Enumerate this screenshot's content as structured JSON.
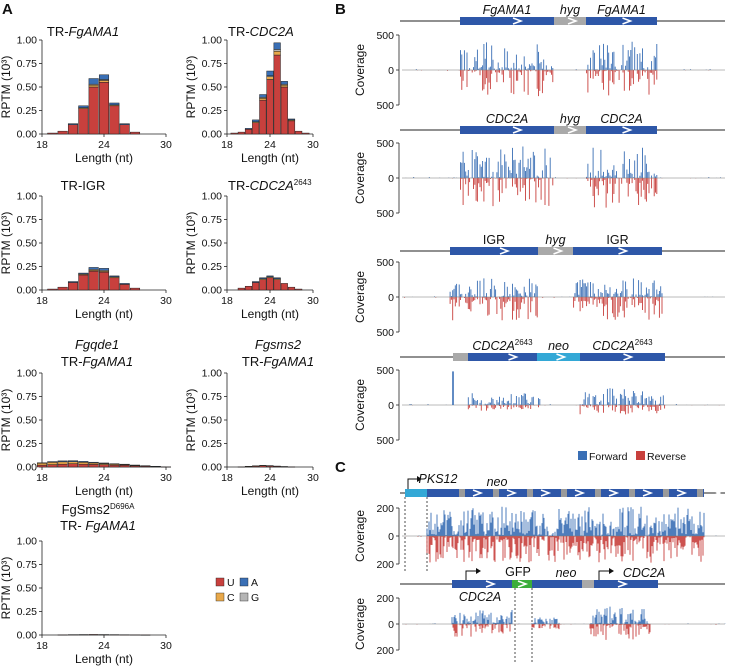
{
  "panels": {
    "A": "A",
    "B": "B",
    "C": "C"
  },
  "panelA": {
    "y_axis_label": "RPTM (10³)",
    "x_axis_label": "Length (nt)",
    "x_ticks": [
      "18",
      "24",
      "30"
    ],
    "y_ticks": [
      "0.00",
      "0.25",
      "0.50",
      "0.75",
      "1.00"
    ],
    "legend": [
      {
        "key": "U",
        "color": "#c8403d"
      },
      {
        "key": "A",
        "color": "#3a6fb5"
      },
      {
        "key": "C",
        "color": "#e8a84a"
      },
      {
        "key": "G",
        "color": "#b5b5b5"
      }
    ],
    "subplots": [
      {
        "title_prefix": "TR-",
        "title_main": "FgAMA1"
      },
      {
        "title_prefix": "TR-",
        "title_main": "CDC2A"
      },
      {
        "title_prefix": "TR-IGR",
        "title_main": ""
      },
      {
        "title_prefix": "TR-",
        "title_main": "CDC2A",
        "title_sup": "2643"
      },
      {
        "title_line1": "Fgqde1",
        "title_prefix": "TR-",
        "title_main": "FgAMA1"
      },
      {
        "title_line1": "Fgsms2",
        "title_prefix": "TR-",
        "title_main": "FgAMA1"
      },
      {
        "title_line1_main": "FgSms2",
        "title_line1_sup": "D696A",
        "title_prefix": "TR- ",
        "title_main": "FgAMA1"
      }
    ]
  },
  "panelB": {
    "y_axis_label": "Coverage",
    "y_ticks": [
      "500",
      "0",
      "500"
    ],
    "legend": [
      {
        "label": "Forward",
        "color": "#3a6fb5"
      },
      {
        "label": "Reverse",
        "color": "#c8403d"
      }
    ],
    "tracks": [
      {
        "left_gene": "FgAMA1",
        "marker": "hyg",
        "right_gene": "FgAMA1"
      },
      {
        "left_gene": "CDC2A",
        "marker": "hyg",
        "right_gene": "CDC2A"
      },
      {
        "left_gene": "IGR",
        "marker": "hyg",
        "right_gene": "IGR"
      },
      {
        "left_gene": "CDC2A",
        "left_sup": "2643",
        "marker": "neo",
        "right_gene": "CDC2A",
        "right_sup": "2643"
      }
    ]
  },
  "panelC": {
    "y_axis_label": "Coverage",
    "y_ticks": [
      "200",
      "0",
      "200"
    ],
    "tracks": [
      {
        "gene1": "PKS12",
        "marker": "neo"
      },
      {
        "gene1": "CDC2A",
        "gfp": "GFP",
        "marker": "neo",
        "gene2": "CDC2A"
      }
    ]
  },
  "chart_data": [
    {
      "type": "bar",
      "id": "A1",
      "title": "TR-FgAMA1",
      "xlabel": "Length (nt)",
      "ylabel": "RPTM (10³)",
      "xlim": [
        18,
        30
      ],
      "ylim": [
        0,
        1
      ],
      "categories": [
        18,
        19,
        20,
        21,
        22,
        23,
        24,
        25,
        26,
        27,
        28,
        29,
        30
      ],
      "series": [
        {
          "name": "U",
          "values": [
            0,
            0.01,
            0.03,
            0.1,
            0.27,
            0.5,
            0.55,
            0.3,
            0.1,
            0.02,
            0,
            0,
            0
          ]
        },
        {
          "name": "C",
          "values": [
            0,
            0,
            0,
            0,
            0.01,
            0.02,
            0.02,
            0.01,
            0,
            0,
            0,
            0,
            0
          ]
        },
        {
          "name": "G",
          "values": [
            0,
            0,
            0,
            0,
            0,
            0.01,
            0.01,
            0,
            0,
            0,
            0,
            0,
            0
          ]
        },
        {
          "name": "A",
          "values": [
            0,
            0,
            0,
            0.01,
            0.02,
            0.06,
            0.05,
            0.02,
            0.01,
            0,
            0,
            0,
            0
          ]
        }
      ]
    },
    {
      "type": "bar",
      "id": "A2",
      "title": "TR-CDC2A",
      "xlabel": "Length (nt)",
      "ylabel": "RPTM (10³)",
      "xlim": [
        18,
        30
      ],
      "ylim": [
        0,
        1
      ],
      "categories": [
        18,
        19,
        20,
        21,
        22,
        23,
        24,
        25,
        26,
        27,
        28,
        29,
        30
      ],
      "series": [
        {
          "name": "U",
          "values": [
            0,
            0.01,
            0.02,
            0.05,
            0.12,
            0.36,
            0.58,
            0.84,
            0.5,
            0.14,
            0.03,
            0.01,
            0
          ]
        },
        {
          "name": "C",
          "values": [
            0,
            0,
            0,
            0,
            0.01,
            0.02,
            0.03,
            0.04,
            0.02,
            0.01,
            0,
            0,
            0
          ]
        },
        {
          "name": "G",
          "values": [
            0,
            0,
            0,
            0,
            0,
            0.01,
            0.01,
            0.02,
            0.01,
            0,
            0,
            0,
            0
          ]
        },
        {
          "name": "A",
          "values": [
            0,
            0,
            0,
            0.01,
            0.02,
            0.03,
            0.05,
            0.07,
            0.03,
            0.01,
            0,
            0,
            0
          ]
        }
      ]
    },
    {
      "type": "bar",
      "id": "A3",
      "title": "TR-IGR",
      "xlabel": "Length (nt)",
      "ylabel": "RPTM (10³)",
      "xlim": [
        18,
        30
      ],
      "ylim": [
        0,
        1
      ],
      "categories": [
        18,
        19,
        20,
        21,
        22,
        23,
        24,
        25,
        26,
        27,
        28,
        29,
        30
      ],
      "series": [
        {
          "name": "U",
          "values": [
            0,
            0.01,
            0.03,
            0.08,
            0.16,
            0.2,
            0.19,
            0.13,
            0.06,
            0.02,
            0,
            0,
            0
          ]
        },
        {
          "name": "C",
          "values": [
            0,
            0,
            0,
            0,
            0.01,
            0.01,
            0.01,
            0.01,
            0,
            0,
            0,
            0,
            0
          ]
        },
        {
          "name": "G",
          "values": [
            0,
            0,
            0,
            0,
            0,
            0.01,
            0.01,
            0,
            0,
            0,
            0,
            0,
            0
          ]
        },
        {
          "name": "A",
          "values": [
            0,
            0,
            0,
            0.01,
            0.01,
            0.02,
            0.02,
            0.01,
            0.01,
            0,
            0,
            0,
            0
          ]
        }
      ]
    },
    {
      "type": "bar",
      "id": "A4",
      "title": "TR-CDC2A2643",
      "xlabel": "Length (nt)",
      "ylabel": "RPTM (10³)",
      "xlim": [
        18,
        30
      ],
      "ylim": [
        0,
        1
      ],
      "categories": [
        18,
        19,
        20,
        21,
        22,
        23,
        24,
        25,
        26,
        27,
        28,
        29,
        30
      ],
      "series": [
        {
          "name": "U",
          "values": [
            0,
            0,
            0.02,
            0.04,
            0.08,
            0.11,
            0.13,
            0.11,
            0.07,
            0.03,
            0.01,
            0,
            0
          ]
        },
        {
          "name": "C",
          "values": [
            0,
            0,
            0,
            0,
            0,
            0.01,
            0.01,
            0.01,
            0,
            0,
            0,
            0,
            0
          ]
        },
        {
          "name": "G",
          "values": [
            0,
            0,
            0,
            0,
            0,
            0,
            0,
            0,
            0,
            0,
            0,
            0,
            0
          ]
        },
        {
          "name": "A",
          "values": [
            0,
            0,
            0,
            0,
            0.01,
            0.01,
            0.01,
            0.01,
            0,
            0,
            0,
            0,
            0
          ]
        }
      ]
    },
    {
      "type": "bar",
      "id": "A5",
      "title": "Fgqde1 TR-FgAMA1",
      "xlabel": "Length (nt)",
      "ylabel": "RPTM (10³)",
      "xlim": [
        18,
        30
      ],
      "ylim": [
        0,
        1
      ],
      "categories": [
        18,
        19,
        20,
        21,
        22,
        23,
        24,
        25,
        26,
        27,
        28,
        29,
        30
      ],
      "series": [
        {
          "name": "U",
          "values": [
            0.02,
            0.025,
            0.03,
            0.035,
            0.03,
            0.028,
            0.025,
            0.02,
            0.018,
            0.012,
            0.008,
            0.005,
            0.002
          ]
        },
        {
          "name": "C",
          "values": [
            0.02,
            0.025,
            0.025,
            0.022,
            0.02,
            0.015,
            0.012,
            0.01,
            0.008,
            0.006,
            0.004,
            0.002,
            0
          ]
        },
        {
          "name": "G",
          "values": [
            0,
            0,
            0,
            0,
            0,
            0,
            0,
            0,
            0,
            0,
            0,
            0,
            0
          ]
        },
        {
          "name": "A",
          "values": [
            0.005,
            0.008,
            0.01,
            0.01,
            0.01,
            0.008,
            0.006,
            0.005,
            0.004,
            0.003,
            0.002,
            0.001,
            0
          ]
        }
      ]
    },
    {
      "type": "bar",
      "id": "A6",
      "title": "Fgsms2 TR-FgAMA1",
      "xlabel": "Length (nt)",
      "ylabel": "RPTM (10³)",
      "xlim": [
        18,
        30
      ],
      "ylim": [
        0,
        1
      ],
      "categories": [
        18,
        19,
        20,
        21,
        22,
        23,
        24,
        25,
        26,
        27,
        28,
        29,
        30
      ],
      "series": [
        {
          "name": "U",
          "values": [
            0,
            0,
            0.002,
            0.006,
            0.01,
            0.014,
            0.012,
            0.008,
            0.004,
            0.002,
            0,
            0,
            0
          ]
        },
        {
          "name": "C",
          "values": [
            0,
            0,
            0,
            0.002,
            0.003,
            0.004,
            0.003,
            0.002,
            0.001,
            0,
            0,
            0,
            0
          ]
        },
        {
          "name": "G",
          "values": [
            0,
            0,
            0,
            0,
            0,
            0,
            0,
            0,
            0,
            0,
            0,
            0,
            0
          ]
        },
        {
          "name": "A",
          "values": [
            0,
            0,
            0,
            0,
            0,
            0,
            0,
            0,
            0,
            0,
            0,
            0,
            0
          ]
        }
      ]
    },
    {
      "type": "bar",
      "id": "A7",
      "title": "FgSms2D696A TR- FgAMA1",
      "xlabel": "Length (nt)",
      "ylabel": "RPTM (10³)",
      "xlim": [
        18,
        30
      ],
      "ylim": [
        0,
        1
      ],
      "categories": [
        18,
        19,
        20,
        21,
        22,
        23,
        24,
        25,
        26,
        27,
        28,
        29,
        30
      ],
      "series": [
        {
          "name": "U",
          "values": [
            0,
            0,
            0.002,
            0.004,
            0.005,
            0.006,
            0.005,
            0.004,
            0.003,
            0.002,
            0.001,
            0,
            0
          ]
        },
        {
          "name": "C",
          "values": [
            0,
            0,
            0,
            0,
            0,
            0,
            0,
            0,
            0,
            0,
            0,
            0,
            0
          ]
        },
        {
          "name": "G",
          "values": [
            0,
            0,
            0,
            0,
            0,
            0,
            0,
            0,
            0,
            0,
            0,
            0,
            0
          ]
        },
        {
          "name": "A",
          "values": [
            0,
            0,
            0,
            0,
            0,
            0,
            0,
            0,
            0,
            0,
            0,
            0,
            0
          ]
        }
      ]
    },
    {
      "type": "area",
      "id": "B",
      "ylabel": "Coverage",
      "ylim": [
        -500,
        500
      ],
      "series_names": [
        "Forward",
        "Reverse"
      ],
      "tracks": [
        {
          "name": "FgAMA1-hyg-FgAMA1",
          "peak_forward": 450,
          "peak_reverse": 420
        },
        {
          "name": "CDC2A-hyg-CDC2A",
          "peak_forward": 520,
          "peak_reverse": 480
        },
        {
          "name": "IGR-hyg-IGR",
          "peak_forward": 300,
          "peak_reverse": 380
        },
        {
          "name": "CDC2A2643-neo-CDC2A2643",
          "peak_forward": 480,
          "peak_reverse": 250
        }
      ]
    },
    {
      "type": "area",
      "id": "C",
      "ylabel": "Coverage",
      "ylim": [
        -200,
        200
      ],
      "series_names": [
        "Forward",
        "Reverse"
      ],
      "tracks": [
        {
          "name": "PKS12-neo",
          "peak_forward": 210,
          "peak_reverse": 190
        },
        {
          "name": "CDC2A-GFP-neo-CDC2A",
          "peak_forward": 200,
          "peak_reverse": 180
        }
      ]
    }
  ]
}
